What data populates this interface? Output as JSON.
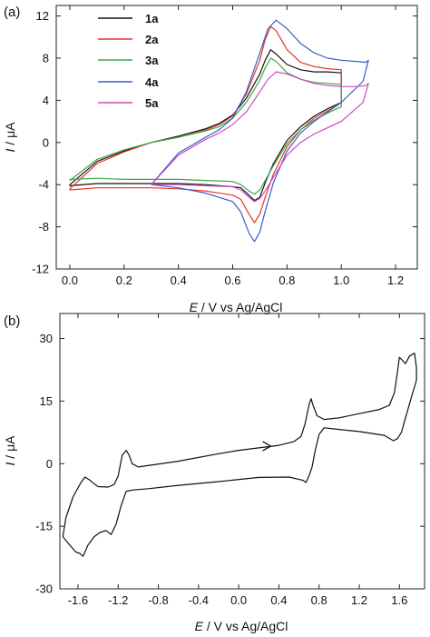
{
  "chart_data": [
    {
      "type": "line",
      "panel_label": "(a)",
      "xlabel_var": "E",
      "xlabel_rest": " / V vs Ag/AgCl",
      "ylabel_var": "I",
      "ylabel_rest": " / μA",
      "xlim": [
        -0.05,
        1.28
      ],
      "ylim": [
        -12,
        13
      ],
      "xticks": [
        0.0,
        0.2,
        0.4,
        0.6,
        0.8,
        1.0,
        1.2
      ],
      "xtick_labels": [
        "0.0",
        "0.2",
        "0.4",
        "0.6",
        "0.8",
        "1.0",
        "1.2"
      ],
      "yticks": [
        -12,
        -8,
        -4,
        0,
        4,
        8,
        12
      ],
      "ytick_labels": [
        "-12",
        "-8",
        "-4",
        "0",
        "4",
        "8",
        "12"
      ],
      "legend_position": "top-left",
      "series": [
        {
          "name": "1a",
          "color": "#111111",
          "x": [
            0.0,
            0.1,
            0.2,
            0.3,
            0.4,
            0.5,
            0.55,
            0.6,
            0.65,
            0.7,
            0.72,
            0.74,
            0.76,
            0.8,
            0.85,
            0.9,
            0.95,
            1.0,
            1.0,
            0.95,
            0.9,
            0.85,
            0.8,
            0.75,
            0.72,
            0.7,
            0.68,
            0.66,
            0.63,
            0.6,
            0.5,
            0.4,
            0.3,
            0.2,
            0.1,
            0.0,
            0.0
          ],
          "y": [
            -4.0,
            -1.8,
            -0.8,
            0.0,
            0.6,
            1.3,
            1.8,
            2.6,
            4.2,
            6.5,
            7.8,
            8.8,
            8.4,
            7.4,
            6.9,
            6.7,
            6.7,
            6.6,
            3.8,
            3.2,
            2.5,
            1.5,
            0.2,
            -2.0,
            -3.8,
            -5.2,
            -5.5,
            -5.0,
            -4.3,
            -4.2,
            -4.0,
            -3.9,
            -3.9,
            -3.9,
            -3.9,
            -4.1,
            -4.0
          ]
        },
        {
          "name": "2a",
          "color": "#e8332a",
          "x": [
            0.0,
            0.1,
            0.2,
            0.3,
            0.4,
            0.5,
            0.55,
            0.6,
            0.65,
            0.7,
            0.72,
            0.74,
            0.76,
            0.8,
            0.85,
            0.9,
            0.95,
            1.0,
            1.0,
            0.95,
            0.9,
            0.85,
            0.8,
            0.75,
            0.72,
            0.7,
            0.68,
            0.66,
            0.63,
            0.6,
            0.5,
            0.4,
            0.3,
            0.2,
            0.1,
            0.0,
            0.0
          ],
          "y": [
            -4.4,
            -2.0,
            -0.9,
            0.0,
            0.5,
            1.2,
            1.7,
            2.5,
            4.6,
            7.8,
            9.8,
            11.0,
            10.6,
            8.8,
            7.6,
            7.2,
            7.0,
            6.9,
            3.8,
            3.0,
            2.3,
            1.2,
            -0.4,
            -3.0,
            -5.2,
            -6.8,
            -7.6,
            -6.8,
            -5.4,
            -5.0,
            -4.6,
            -4.4,
            -4.3,
            -4.3,
            -4.3,
            -4.5,
            -4.4
          ]
        },
        {
          "name": "3a",
          "color": "#3ba848",
          "x": [
            0.0,
            0.1,
            0.2,
            0.3,
            0.4,
            0.5,
            0.55,
            0.6,
            0.65,
            0.7,
            0.72,
            0.74,
            0.76,
            0.8,
            0.85,
            0.9,
            0.95,
            1.0,
            1.0,
            0.95,
            0.9,
            0.85,
            0.8,
            0.75,
            0.72,
            0.7,
            0.68,
            0.66,
            0.63,
            0.6,
            0.5,
            0.4,
            0.3,
            0.2,
            0.1,
            0.0,
            0.0
          ],
          "y": [
            -3.6,
            -1.6,
            -0.7,
            0.0,
            0.5,
            1.1,
            1.5,
            2.3,
            3.8,
            5.9,
            7.1,
            8.0,
            7.7,
            6.6,
            6.0,
            5.7,
            5.6,
            5.5,
            3.4,
            2.8,
            2.1,
            1.2,
            -0.1,
            -2.2,
            -3.6,
            -4.5,
            -4.9,
            -4.6,
            -4.0,
            -3.7,
            -3.6,
            -3.5,
            -3.5,
            -3.5,
            -3.4,
            -3.5,
            -3.6
          ]
        },
        {
          "name": "4a",
          "color": "#3a5fc7",
          "x": [
            0.3,
            0.4,
            0.5,
            0.55,
            0.6,
            0.65,
            0.7,
            0.73,
            0.76,
            0.8,
            0.85,
            0.9,
            0.95,
            1.0,
            1.05,
            1.09,
            1.1,
            1.08,
            1.0,
            0.95,
            0.9,
            0.85,
            0.8,
            0.75,
            0.72,
            0.7,
            0.68,
            0.66,
            0.63,
            0.6,
            0.5,
            0.4,
            0.3,
            0.3
          ],
          "y": [
            -4.0,
            -1.0,
            0.5,
            1.2,
            2.3,
            4.8,
            8.5,
            10.8,
            11.6,
            10.8,
            9.4,
            8.5,
            8.0,
            7.8,
            7.7,
            7.6,
            7.8,
            5.8,
            3.8,
            2.9,
            2.0,
            0.9,
            -0.8,
            -3.8,
            -6.5,
            -8.5,
            -9.4,
            -8.6,
            -6.6,
            -5.6,
            -4.8,
            -4.3,
            -4.0,
            -4.0
          ]
        },
        {
          "name": "5a",
          "color": "#c94cc4",
          "x": [
            0.3,
            0.4,
            0.5,
            0.55,
            0.6,
            0.65,
            0.7,
            0.73,
            0.76,
            0.8,
            0.85,
            0.9,
            0.95,
            1.0,
            1.05,
            1.09,
            1.1,
            1.08,
            1.0,
            0.95,
            0.9,
            0.85,
            0.8,
            0.75,
            0.72,
            0.7,
            0.68,
            0.66,
            0.63,
            0.6,
            0.5,
            0.4,
            0.3,
            0.3
          ],
          "y": [
            -4.0,
            -1.2,
            0.3,
            0.9,
            1.7,
            2.9,
            4.8,
            6.0,
            6.7,
            6.5,
            6.0,
            5.6,
            5.4,
            5.3,
            5.3,
            5.4,
            5.6,
            3.8,
            2.0,
            1.4,
            0.8,
            0.0,
            -1.2,
            -3.3,
            -4.6,
            -5.3,
            -5.6,
            -5.2,
            -4.5,
            -4.2,
            -4.1,
            -4.0,
            -4.0,
            -4.0
          ]
        }
      ]
    },
    {
      "type": "line",
      "panel_label": "(b)",
      "xlabel_var": "E",
      "xlabel_rest": " / V vs Ag/AgCl",
      "ylabel_var": "I",
      "ylabel_rest": " / μA",
      "xlim": [
        -1.78,
        1.85
      ],
      "ylim": [
        -30,
        36
      ],
      "xticks": [
        -1.6,
        -1.2,
        -0.8,
        -0.4,
        0.0,
        0.4,
        0.8,
        1.2,
        1.6
      ],
      "xtick_labels": [
        "-1.6",
        "-1.2",
        "-0.8",
        "-0.4",
        "0.0",
        "0.4",
        "0.8",
        "1.2",
        "1.6"
      ],
      "yticks": [
        -30,
        -15,
        0,
        15,
        30
      ],
      "ytick_labels": [
        "-30",
        "-15",
        "0",
        "15",
        "30"
      ],
      "arrow_at": [
        0.32,
        4.2
      ],
      "series": [
        {
          "name": "",
          "color": "#111111",
          "x": [
            0.0,
            0.4,
            0.55,
            0.62,
            0.66,
            0.7,
            0.72,
            0.74,
            0.78,
            0.85,
            1.0,
            1.2,
            1.4,
            1.5,
            1.55,
            1.58,
            1.6,
            1.62,
            1.66,
            1.7,
            1.75,
            1.77,
            1.77,
            1.72,
            1.66,
            1.62,
            1.58,
            1.54,
            1.45,
            1.2,
            1.0,
            0.85,
            0.8,
            0.76,
            0.73,
            0.7,
            0.67,
            0.64,
            0.5,
            0.2,
            -0.2,
            -0.6,
            -0.9,
            -1.05,
            -1.12,
            -1.17,
            -1.22,
            -1.27,
            -1.32,
            -1.38,
            -1.44,
            -1.5,
            -1.55,
            -1.58,
            -1.62,
            -1.7,
            -1.75,
            -1.72,
            -1.65,
            -1.57,
            -1.53,
            -1.49,
            -1.44,
            -1.4,
            -1.3,
            -1.24,
            -1.2,
            -1.16,
            -1.12,
            -1.09,
            -1.06,
            -1.0,
            -0.6,
            -0.2,
            0.0
          ],
          "y": [
            3.2,
            4.4,
            5.3,
            6.5,
            9.5,
            14.0,
            15.6,
            14.0,
            11.5,
            10.6,
            11.0,
            12.0,
            13.0,
            14.0,
            17.0,
            22.0,
            25.5,
            25.0,
            24.0,
            25.8,
            26.5,
            23.0,
            20.0,
            16.0,
            11.0,
            7.5,
            6.0,
            5.5,
            6.8,
            7.7,
            8.2,
            8.6,
            7.0,
            3.0,
            -0.8,
            -3.0,
            -4.5,
            -4.0,
            -3.2,
            -3.3,
            -4.3,
            -5.2,
            -6.0,
            -6.3,
            -6.6,
            -10.0,
            -14.5,
            -17.0,
            -16.0,
            -16.5,
            -17.5,
            -19.5,
            -22.2,
            -21.5,
            -21.2,
            -19.0,
            -17.5,
            -13.0,
            -8.0,
            -4.5,
            -3.2,
            -3.8,
            -4.8,
            -5.5,
            -5.6,
            -5.0,
            -3.0,
            2.0,
            3.2,
            2.0,
            0.0,
            -0.8,
            0.6,
            2.4,
            3.2
          ]
        }
      ]
    }
  ]
}
